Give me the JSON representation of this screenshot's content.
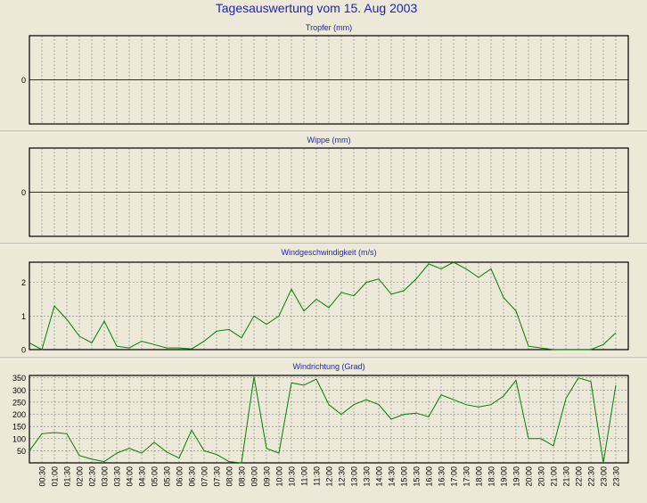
{
  "page": {
    "title": "Tagesauswertung vom 15. Aug 2003"
  },
  "colors": {
    "background": "#ece9d8",
    "title_text": "#1d1dc8",
    "axis_line": "#000000",
    "grid_line": "#808080",
    "zero_line": "#1d1dc8",
    "series_line": "#008000"
  },
  "time_labels": [
    "00:30",
    "01:00",
    "01:30",
    "02:00",
    "02:30",
    "03:00",
    "03:30",
    "04:00",
    "04:30",
    "05:00",
    "05:30",
    "06:00",
    "06:30",
    "07:00",
    "07:30",
    "08:00",
    "08:30",
    "09:00",
    "09:30",
    "10:00",
    "10:30",
    "11:00",
    "11:30",
    "12:00",
    "12:30",
    "13:00",
    "13:30",
    "14:00",
    "14:30",
    "15:00",
    "15:30",
    "16:00",
    "16:30",
    "17:00",
    "17:30",
    "18:00",
    "18:30",
    "19:00",
    "19:30",
    "20:00",
    "20:30",
    "21:00",
    "21:30",
    "22:00",
    "22:30",
    "23:00",
    "23:30"
  ],
  "chart_data": [
    {
      "type": "line",
      "title": "Tropfer (mm)",
      "x_is_time": true,
      "yticks": [
        0
      ],
      "ylim": [
        -1,
        1
      ],
      "grid": true,
      "series": [
        {
          "values": []
        }
      ],
      "zero_line": true
    },
    {
      "type": "line",
      "title": "Wippe (mm)",
      "x_is_time": true,
      "yticks": [
        0
      ],
      "ylim": [
        -1,
        1
      ],
      "grid": true,
      "series": [
        {
          "values": []
        }
      ],
      "zero_line": true
    },
    {
      "type": "line",
      "title": "Windgeschwindigkeit (m/s)",
      "x_is_time": true,
      "yticks": [
        0,
        1,
        2
      ],
      "ylim": [
        0,
        2.6
      ],
      "grid": true,
      "series": [
        {
          "values": [
            0.2,
            0.0,
            1.3,
            0.9,
            0.4,
            0.2,
            0.85,
            0.1,
            0.05,
            0.25,
            0.15,
            0.05,
            0.05,
            0.02,
            0.25,
            0.55,
            0.6,
            0.35,
            1.0,
            0.75,
            1.0,
            1.8,
            1.15,
            1.5,
            1.25,
            1.7,
            1.6,
            2.0,
            2.1,
            1.65,
            1.75,
            2.1,
            2.55,
            2.4,
            2.6,
            2.4,
            2.15,
            2.4,
            1.55,
            1.15,
            0.1,
            0.05,
            0.0,
            0.0,
            0.0,
            0.0,
            0.15,
            0.5
          ]
        }
      ]
    },
    {
      "type": "line",
      "title": "Windrichtung (Grad)",
      "x_is_time": true,
      "yticks": [
        50,
        100,
        150,
        200,
        250,
        300,
        350
      ],
      "ylim": [
        0,
        360
      ],
      "grid": true,
      "series": [
        {
          "values": [
            50,
            120,
            125,
            120,
            30,
            15,
            5,
            40,
            60,
            40,
            85,
            45,
            20,
            135,
            50,
            35,
            5,
            0,
            355,
            60,
            40,
            330,
            320,
            345,
            240,
            200,
            240,
            260,
            240,
            180,
            200,
            205,
            190,
            280,
            260,
            240,
            230,
            240,
            275,
            340,
            100,
            100,
            70,
            265,
            350,
            335,
            0,
            320
          ]
        }
      ]
    }
  ]
}
